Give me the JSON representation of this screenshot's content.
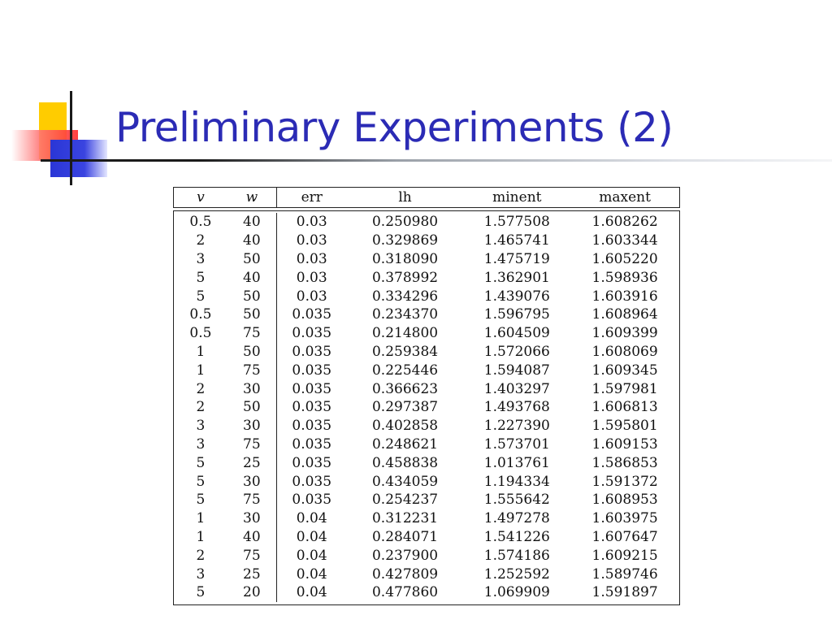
{
  "slide": {
    "title": "Preliminary Experiments (2)"
  },
  "table": {
    "headers": [
      "v",
      "w",
      "err",
      "lh",
      "minent",
      "maxent"
    ],
    "rows": [
      [
        "0.5",
        "40",
        "0.03",
        "0.250980",
        "1.577508",
        "1.608262"
      ],
      [
        "2",
        "40",
        "0.03",
        "0.329869",
        "1.465741",
        "1.603344"
      ],
      [
        "3",
        "50",
        "0.03",
        "0.318090",
        "1.475719",
        "1.605220"
      ],
      [
        "5",
        "40",
        "0.03",
        "0.378992",
        "1.362901",
        "1.598936"
      ],
      [
        "5",
        "50",
        "0.03",
        "0.334296",
        "1.439076",
        "1.603916"
      ],
      [
        "0.5",
        "50",
        "0.035",
        "0.234370",
        "1.596795",
        "1.608964"
      ],
      [
        "0.5",
        "75",
        "0.035",
        "0.214800",
        "1.604509",
        "1.609399"
      ],
      [
        "1",
        "50",
        "0.035",
        "0.259384",
        "1.572066",
        "1.608069"
      ],
      [
        "1",
        "75",
        "0.035",
        "0.225446",
        "1.594087",
        "1.609345"
      ],
      [
        "2",
        "30",
        "0.035",
        "0.366623",
        "1.403297",
        "1.597981"
      ],
      [
        "2",
        "50",
        "0.035",
        "0.297387",
        "1.493768",
        "1.606813"
      ],
      [
        "3",
        "30",
        "0.035",
        "0.402858",
        "1.227390",
        "1.595801"
      ],
      [
        "3",
        "75",
        "0.035",
        "0.248621",
        "1.573701",
        "1.609153"
      ],
      [
        "5",
        "25",
        "0.035",
        "0.458838",
        "1.013761",
        "1.586853"
      ],
      [
        "5",
        "30",
        "0.035",
        "0.434059",
        "1.194334",
        "1.591372"
      ],
      [
        "5",
        "75",
        "0.035",
        "0.254237",
        "1.555642",
        "1.608953"
      ],
      [
        "1",
        "30",
        "0.04",
        "0.312231",
        "1.497278",
        "1.603975"
      ],
      [
        "1",
        "40",
        "0.04",
        "0.284071",
        "1.541226",
        "1.607647"
      ],
      [
        "2",
        "75",
        "0.04",
        "0.237900",
        "1.574186",
        "1.609215"
      ],
      [
        "3",
        "25",
        "0.04",
        "0.427809",
        "1.252592",
        "1.589746"
      ],
      [
        "5",
        "20",
        "0.04",
        "0.477860",
        "1.069909",
        "1.591897"
      ]
    ]
  },
  "colors": {
    "title": "#2b2bb5",
    "accent_yellow": "#ffcc00",
    "accent_red": "#ff2a2a",
    "accent_blue": "#2a36d6"
  }
}
